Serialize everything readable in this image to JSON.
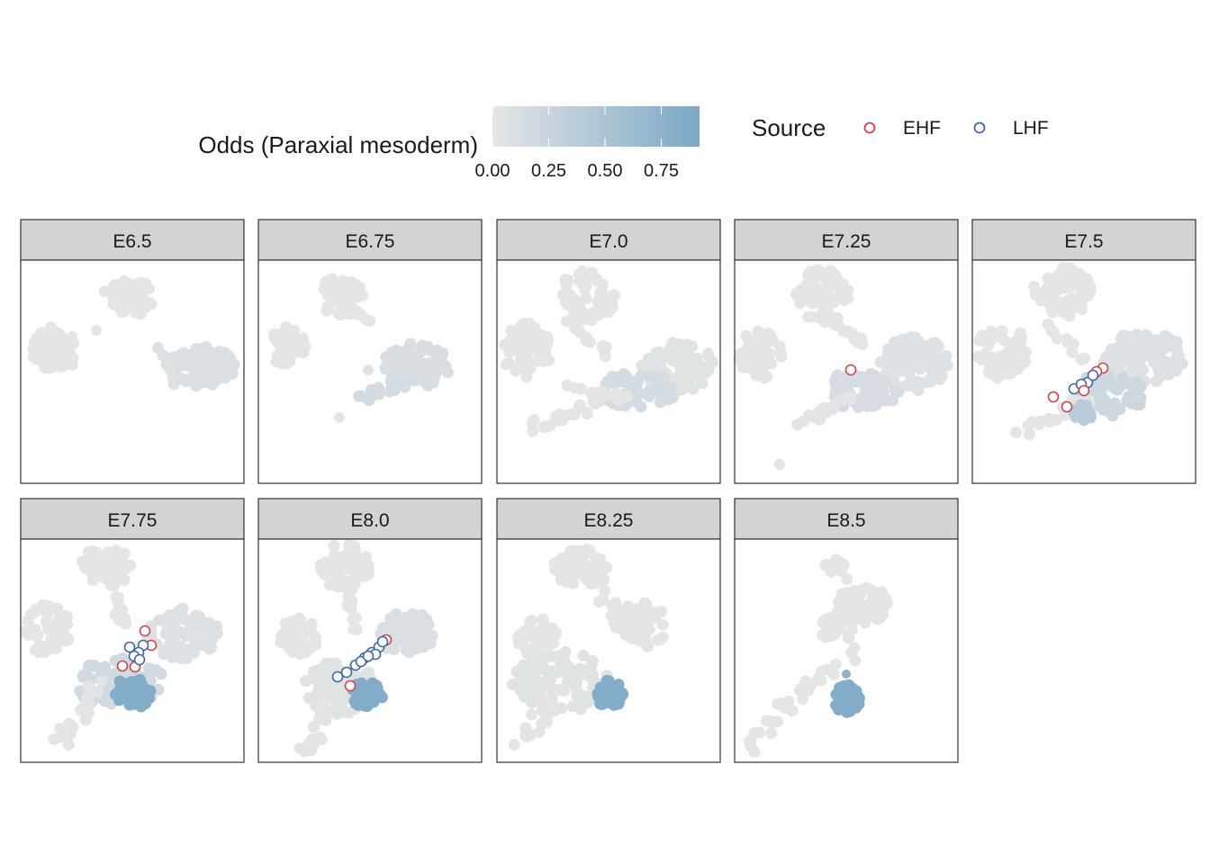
{
  "chart_data": {
    "type": "scatter",
    "facet_variable": "stage",
    "panels": [
      "E6.5",
      "E6.75",
      "E7.0",
      "E7.25",
      "E7.5",
      "E7.75",
      "E8.0",
      "E8.25",
      "E8.5"
    ],
    "colorbar": {
      "title": "Odds (Paraxial mesoderm)",
      "range": [
        0,
        0.92
      ],
      "ticks": [
        "0.00",
        "0.25",
        "0.50",
        "0.75"
      ],
      "tick_values": [
        0,
        0.25,
        0.5,
        0.75
      ],
      "low_color": "#e6e6e6",
      "high_color": "#7ba7c6"
    },
    "legend": {
      "title": "Source",
      "placement": "top",
      "items": [
        {
          "label": "EHF",
          "color": "#d0454c",
          "shape": "open-circle"
        },
        {
          "label": "LHF",
          "color": "#3f68a6",
          "shape": "open-circle"
        }
      ]
    },
    "axes": {
      "x_visible": false,
      "y_visible": false,
      "grid": false
    }
  }
}
